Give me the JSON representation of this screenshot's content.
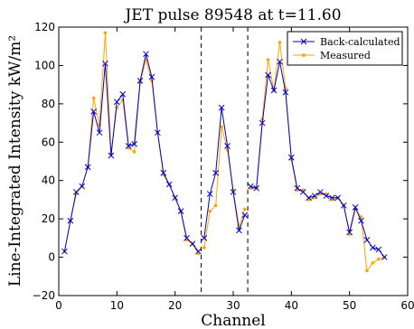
{
  "chart_data": {
    "type": "line",
    "title": "JET pulse 89548 at t=11.60",
    "xlabel": "Channel",
    "ylabel": "Line-Integrated Intensity kW/m²",
    "xlim": [
      0,
      60
    ],
    "ylim": [
      -20,
      120
    ],
    "xticks": [
      "0",
      "10",
      "20",
      "30",
      "40",
      "50",
      "60"
    ],
    "yticks": [
      "−20",
      "0",
      "20",
      "40",
      "60",
      "80",
      "100",
      "120"
    ],
    "grid": false,
    "legend_position": "top-right",
    "vlines": [
      24.5,
      32.5
    ],
    "colors": {
      "back": "#0000cc",
      "measured": "#ffa500"
    },
    "segments": [
      [
        1,
        24
      ],
      [
        25,
        32
      ],
      [
        33,
        56
      ]
    ],
    "x": [
      1,
      2,
      3,
      4,
      5,
      6,
      7,
      8,
      9,
      10,
      11,
      12,
      13,
      14,
      15,
      16,
      17,
      18,
      19,
      20,
      21,
      22,
      23,
      24,
      25,
      26,
      27,
      28,
      29,
      30,
      31,
      32,
      33,
      34,
      35,
      36,
      37,
      38,
      39,
      40,
      41,
      42,
      43,
      44,
      45,
      46,
      47,
      48,
      49,
      50,
      51,
      52,
      53,
      54,
      55,
      56
    ],
    "series": [
      {
        "name": "Back-calculated",
        "marker": "x",
        "values": [
          3,
          19,
          34,
          37,
          47,
          76,
          65,
          101,
          53,
          81,
          85,
          58,
          59,
          92,
          106,
          94,
          65,
          44,
          38,
          31,
          24,
          10,
          7,
          3,
          10,
          33,
          44,
          78,
          58,
          34,
          14,
          22,
          37,
          36,
          70,
          95,
          87,
          102,
          86,
          52,
          36,
          34,
          31,
          32,
          34,
          32,
          31,
          31,
          27,
          13,
          26,
          19,
          9,
          5,
          4,
          0
        ]
      },
      {
        "name": "Measured",
        "marker": "dot",
        "values": [
          3,
          19,
          33,
          37,
          47,
          83,
          69,
          117,
          54,
          78,
          82,
          57,
          55,
          91,
          103,
          92,
          65,
          43,
          38,
          31,
          24,
          9,
          7,
          2,
          5,
          24,
          27,
          68,
          56,
          35,
          16,
          25,
          36,
          36,
          72,
          103,
          87,
          112,
          88,
          51,
          35,
          35,
          30,
          31,
          33,
          33,
          30,
          31,
          27,
          12,
          25,
          21,
          -7,
          -3,
          -1,
          0
        ]
      }
    ]
  }
}
